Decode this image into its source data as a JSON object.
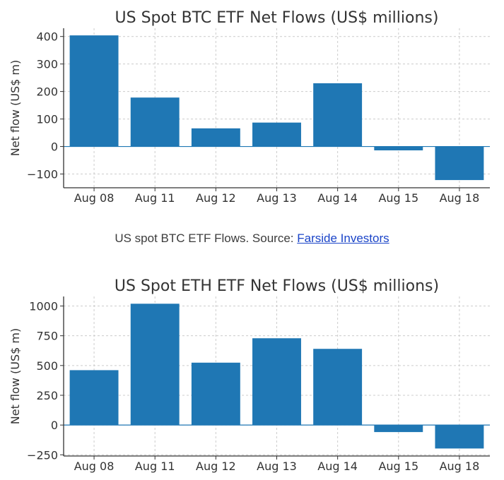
{
  "caption": {
    "text": "US spot BTC ETF Flows. Source: ",
    "link": "Farside Investors"
  },
  "chart_data": [
    {
      "type": "bar",
      "title": "US Spot BTC ETF Net Flows (US$ millions)",
      "xlabel": "",
      "ylabel": "Net flow (US$ m)",
      "categories": [
        "Aug 08",
        "Aug 11",
        "Aug 12",
        "Aug 13",
        "Aug 14",
        "Aug 15",
        "Aug 18"
      ],
      "values": [
        404,
        178,
        66,
        87,
        230,
        -14,
        -122
      ],
      "ylim": [
        -150,
        430
      ],
      "yticks": [
        -100,
        0,
        100,
        200,
        300,
        400
      ],
      "ytick_labels": [
        "−100",
        "0",
        "100",
        "200",
        "300",
        "400"
      ],
      "grid": true,
      "bar_color": "#1f77b4"
    },
    {
      "type": "bar",
      "title": "US Spot ETH ETF Net Flows (US$ millions)",
      "xlabel": "",
      "ylabel": "Net flow (US$ m)",
      "categories": [
        "Aug 08",
        "Aug 11",
        "Aug 12",
        "Aug 13",
        "Aug 14",
        "Aug 15",
        "Aug 18"
      ],
      "values": [
        461,
        1019,
        524,
        729,
        640,
        -59,
        -197
      ],
      "ylim": [
        -260,
        1080
      ],
      "yticks": [
        -250,
        0,
        250,
        500,
        750,
        1000
      ],
      "ytick_labels": [
        "−250",
        "0",
        "250",
        "500",
        "750",
        "1000"
      ],
      "grid": true,
      "bar_color": "#1f77b4"
    }
  ]
}
